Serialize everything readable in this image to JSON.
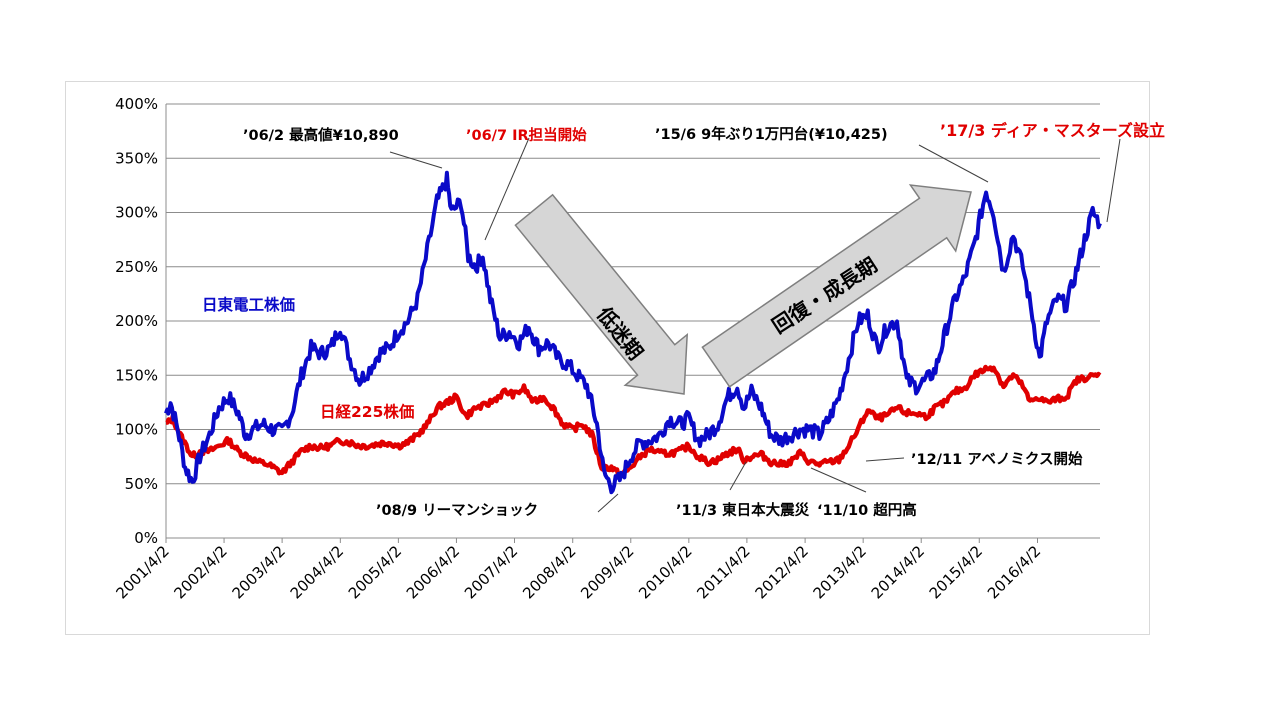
{
  "chart_data": {
    "type": "line",
    "title": "",
    "xlabel": "",
    "ylabel": "",
    "x_range": [
      "2001-04-02",
      "2017-04-30"
    ],
    "ylim": [
      0,
      400
    ],
    "y_ticks": [
      "0%",
      "50%",
      "100%",
      "150%",
      "200%",
      "250%",
      "300%",
      "350%",
      "400%"
    ],
    "x_ticks": [
      "2001/4/2",
      "2002/4/2",
      "2003/4/2",
      "2004/4/2",
      "2005/4/2",
      "2006/4/2",
      "2007/4/2",
      "2008/4/2",
      "2009/4/2",
      "2010/4/2",
      "2011/4/2",
      "2012/4/2",
      "2013/4/2",
      "2014/4/2",
      "2015/4/2",
      "2016/4/2"
    ],
    "grid": true,
    "series": [
      {
        "name": "日東電工株価",
        "color": "#0a0ac8",
        "points": [
          [
            "2001-04-02",
            115
          ],
          [
            "2001-05-01",
            125
          ],
          [
            "2001-06-15",
            100
          ],
          [
            "2001-08-01",
            65
          ],
          [
            "2001-09-15",
            52
          ],
          [
            "2001-11-01",
            75
          ],
          [
            "2002-01-01",
            95
          ],
          [
            "2002-03-01",
            120
          ],
          [
            "2002-05-01",
            130
          ],
          [
            "2002-07-01",
            115
          ],
          [
            "2002-08-15",
            95
          ],
          [
            "2002-10-01",
            100
          ],
          [
            "2002-12-01",
            105
          ],
          [
            "2003-02-01",
            100
          ],
          [
            "2003-04-01",
            98
          ],
          [
            "2003-06-01",
            115
          ],
          [
            "2003-08-01",
            150
          ],
          [
            "2003-10-01",
            175
          ],
          [
            "2003-12-01",
            170
          ],
          [
            "2004-02-01",
            175
          ],
          [
            "2004-04-01",
            195
          ],
          [
            "2004-06-01",
            165
          ],
          [
            "2004-08-01",
            145
          ],
          [
            "2004-10-01",
            155
          ],
          [
            "2004-12-01",
            170
          ],
          [
            "2005-02-01",
            175
          ],
          [
            "2005-04-01",
            190
          ],
          [
            "2005-06-01",
            200
          ],
          [
            "2005-08-01",
            220
          ],
          [
            "2005-10-01",
            265
          ],
          [
            "2005-12-01",
            310
          ],
          [
            "2006-02-01",
            330
          ],
          [
            "2006-03-01",
            300
          ],
          [
            "2006-05-01",
            310
          ],
          [
            "2006-06-15",
            260
          ],
          [
            "2006-08-01",
            250
          ],
          [
            "2006-09-15",
            260
          ],
          [
            "2006-11-01",
            220
          ],
          [
            "2007-01-01",
            185
          ],
          [
            "2007-03-01",
            190
          ],
          [
            "2007-05-01",
            180
          ],
          [
            "2007-07-01",
            195
          ],
          [
            "2007-09-01",
            175
          ],
          [
            "2007-11-01",
            180
          ],
          [
            "2008-01-01",
            165
          ],
          [
            "2008-03-01",
            160
          ],
          [
            "2008-05-01",
            150
          ],
          [
            "2008-07-01",
            140
          ],
          [
            "2008-09-01",
            105
          ],
          [
            "2008-10-15",
            60
          ],
          [
            "2008-12-01",
            48
          ],
          [
            "2009-02-01",
            55
          ],
          [
            "2009-04-01",
            75
          ],
          [
            "2009-06-01",
            88
          ],
          [
            "2009-08-01",
            90
          ],
          [
            "2009-10-01",
            95
          ],
          [
            "2009-12-01",
            110
          ],
          [
            "2010-02-01",
            105
          ],
          [
            "2010-04-01",
            110
          ],
          [
            "2010-06-01",
            90
          ],
          [
            "2010-08-01",
            95
          ],
          [
            "2010-10-01",
            105
          ],
          [
            "2010-12-01",
            130
          ],
          [
            "2011-02-01",
            140
          ],
          [
            "2011-03-15",
            120
          ],
          [
            "2011-05-01",
            135
          ],
          [
            "2011-07-01",
            120
          ],
          [
            "2011-09-01",
            95
          ],
          [
            "2011-11-01",
            90
          ],
          [
            "2012-01-01",
            95
          ],
          [
            "2012-03-01",
            100
          ],
          [
            "2012-05-01",
            100
          ],
          [
            "2012-07-01",
            95
          ],
          [
            "2012-09-01",
            110
          ],
          [
            "2012-11-01",
            130
          ],
          [
            "2013-01-01",
            165
          ],
          [
            "2013-03-01",
            200
          ],
          [
            "2013-05-01",
            205
          ],
          [
            "2013-07-01",
            175
          ],
          [
            "2013-09-01",
            195
          ],
          [
            "2013-11-01",
            200
          ],
          [
            "2014-01-01",
            145
          ],
          [
            "2014-03-01",
            140
          ],
          [
            "2014-05-01",
            145
          ],
          [
            "2014-07-01",
            155
          ],
          [
            "2014-09-01",
            190
          ],
          [
            "2014-11-01",
            220
          ],
          [
            "2015-01-01",
            240
          ],
          [
            "2015-03-01",
            270
          ],
          [
            "2015-05-15",
            320
          ],
          [
            "2015-07-01",
            300
          ],
          [
            "2015-09-01",
            245
          ],
          [
            "2015-11-01",
            280
          ],
          [
            "2016-01-01",
            250
          ],
          [
            "2016-03-01",
            205
          ],
          [
            "2016-04-15",
            165
          ],
          [
            "2016-06-01",
            200
          ],
          [
            "2016-08-01",
            220
          ],
          [
            "2016-10-01",
            215
          ],
          [
            "2016-12-01",
            245
          ],
          [
            "2017-02-01",
            280
          ],
          [
            "2017-03-15",
            300
          ],
          [
            "2017-04-30",
            290
          ]
        ]
      },
      {
        "name": "日経225株価",
        "color": "#e00000",
        "points": [
          [
            "2001-04-02",
            105
          ],
          [
            "2001-05-15",
            110
          ],
          [
            "2001-07-01",
            95
          ],
          [
            "2001-09-15",
            75
          ],
          [
            "2001-11-01",
            80
          ],
          [
            "2002-01-01",
            80
          ],
          [
            "2002-03-01",
            85
          ],
          [
            "2002-05-01",
            90
          ],
          [
            "2002-07-01",
            80
          ],
          [
            "2002-09-01",
            75
          ],
          [
            "2002-11-01",
            70
          ],
          [
            "2003-01-01",
            68
          ],
          [
            "2003-04-01",
            60
          ],
          [
            "2003-06-01",
            70
          ],
          [
            "2003-08-01",
            80
          ],
          [
            "2003-10-01",
            85
          ],
          [
            "2003-12-01",
            83
          ],
          [
            "2004-02-01",
            85
          ],
          [
            "2004-04-01",
            90
          ],
          [
            "2004-06-01",
            88
          ],
          [
            "2004-08-01",
            85
          ],
          [
            "2004-10-01",
            85
          ],
          [
            "2004-12-01",
            87
          ],
          [
            "2005-02-01",
            88
          ],
          [
            "2005-04-01",
            85
          ],
          [
            "2005-06-01",
            88
          ],
          [
            "2005-08-01",
            95
          ],
          [
            "2005-10-01",
            105
          ],
          [
            "2005-12-01",
            120
          ],
          [
            "2006-02-01",
            125
          ],
          [
            "2006-04-01",
            130
          ],
          [
            "2006-06-01",
            112
          ],
          [
            "2006-08-01",
            120
          ],
          [
            "2006-10-01",
            122
          ],
          [
            "2006-12-01",
            128
          ],
          [
            "2007-02-01",
            135
          ],
          [
            "2007-04-01",
            132
          ],
          [
            "2007-06-01",
            138
          ],
          [
            "2007-08-01",
            125
          ],
          [
            "2007-10-01",
            130
          ],
          [
            "2007-12-01",
            120
          ],
          [
            "2008-02-01",
            105
          ],
          [
            "2008-04-01",
            100
          ],
          [
            "2008-06-01",
            105
          ],
          [
            "2008-08-01",
            95
          ],
          [
            "2008-10-01",
            65
          ],
          [
            "2008-12-01",
            65
          ],
          [
            "2009-02-01",
            57
          ],
          [
            "2009-04-01",
            65
          ],
          [
            "2009-06-01",
            75
          ],
          [
            "2009-08-01",
            82
          ],
          [
            "2009-10-01",
            78
          ],
          [
            "2009-12-01",
            78
          ],
          [
            "2010-02-01",
            80
          ],
          [
            "2010-04-01",
            85
          ],
          [
            "2010-06-01",
            75
          ],
          [
            "2010-08-01",
            70
          ],
          [
            "2010-10-01",
            72
          ],
          [
            "2010-12-01",
            78
          ],
          [
            "2011-02-01",
            82
          ],
          [
            "2011-03-15",
            72
          ],
          [
            "2011-05-01",
            75
          ],
          [
            "2011-07-01",
            77
          ],
          [
            "2011-09-01",
            70
          ],
          [
            "2011-11-01",
            68
          ],
          [
            "2012-01-01",
            70
          ],
          [
            "2012-03-01",
            78
          ],
          [
            "2012-05-01",
            70
          ],
          [
            "2012-07-01",
            68
          ],
          [
            "2012-09-01",
            70
          ],
          [
            "2012-11-01",
            72
          ],
          [
            "2013-01-01",
            85
          ],
          [
            "2013-03-01",
            100
          ],
          [
            "2013-05-01",
            118
          ],
          [
            "2013-07-01",
            110
          ],
          [
            "2013-09-01",
            113
          ],
          [
            "2013-11-01",
            120
          ],
          [
            "2014-01-01",
            115
          ],
          [
            "2014-03-01",
            115
          ],
          [
            "2014-05-01",
            112
          ],
          [
            "2014-07-01",
            120
          ],
          [
            "2014-09-01",
            125
          ],
          [
            "2014-11-01",
            135
          ],
          [
            "2015-01-01",
            138
          ],
          [
            "2015-03-01",
            150
          ],
          [
            "2015-05-01",
            155
          ],
          [
            "2015-07-01",
            158
          ],
          [
            "2015-09-01",
            140
          ],
          [
            "2015-11-01",
            150
          ],
          [
            "2016-01-01",
            140
          ],
          [
            "2016-02-15",
            125
          ],
          [
            "2016-04-01",
            130
          ],
          [
            "2016-06-01",
            125
          ],
          [
            "2016-08-01",
            128
          ],
          [
            "2016-10-01",
            130
          ],
          [
            "2016-12-01",
            145
          ],
          [
            "2017-02-01",
            148
          ],
          [
            "2017-04-30",
            150
          ]
        ]
      }
    ],
    "series_labels": {
      "nitto": "日東電工株価",
      "nikkei": "日経225株価"
    },
    "annotations": {
      "a0602": "’06/2 最高値¥10,890",
      "a0607": "’06/7 IR担当開始",
      "a1506": "’15/6  9年ぶり1万円台(¥10,425)",
      "a1703": "’17/3 ディア・マスターズ設立",
      "a1211": "’12/11 アベノミクス開始",
      "a0809": "’08/9 リーマンショック",
      "a1103": "’11/3 東日本大震災",
      "a1110": "‘11/10 超円高"
    },
    "phases": {
      "down": "低迷期",
      "up": "回復・成長期"
    },
    "colors": {
      "nitto": "#0a0ac8",
      "nikkei": "#e00000",
      "grid": "#8c8c8c",
      "arrow_fill": "#d6d6d6",
      "arrow_stroke": "#7f7f7f"
    }
  }
}
